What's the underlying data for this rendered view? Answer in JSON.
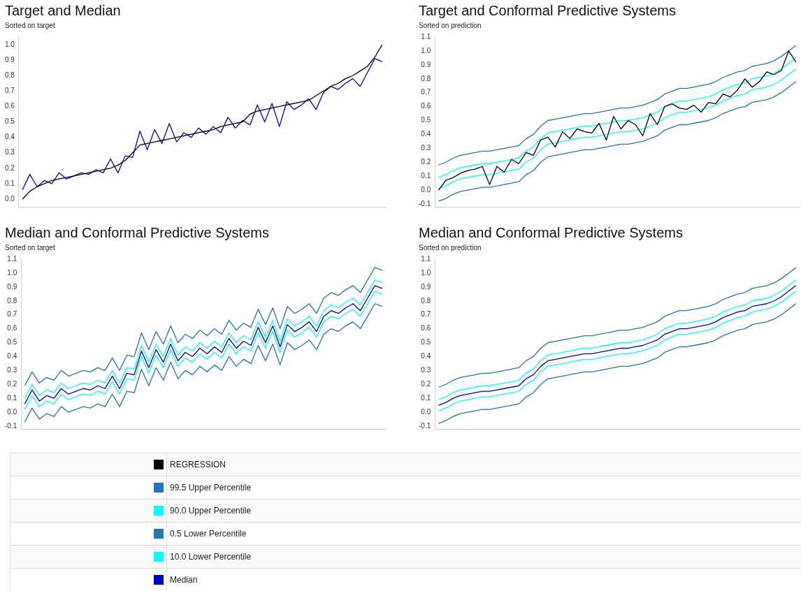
{
  "chart_data": [
    {
      "type": "line",
      "title": "Target and Median",
      "subtitle": "Sorted on target",
      "categories": [
        null,
        null,
        null,
        null,
        null,
        null,
        null,
        null,
        null,
        null,
        null,
        null,
        null,
        null,
        null,
        null,
        null,
        null,
        null,
        null,
        null,
        null,
        null,
        null,
        null,
        null,
        null,
        null,
        null,
        null,
        null,
        null,
        null,
        null,
        null,
        null,
        null,
        null,
        null,
        null,
        null,
        null,
        null,
        null,
        null,
        null,
        null,
        null,
        null,
        null
      ],
      "ylim": [
        -0.05,
        1.05
      ],
      "yticks": [
        {
          "value": 0,
          "label": "0.0"
        },
        {
          "value": 0.1,
          "label": "0.1"
        },
        {
          "value": 0.2,
          "label": "0.2"
        },
        {
          "value": 0.3,
          "label": "0.3"
        },
        {
          "value": 0.4,
          "label": "0.4"
        },
        {
          "value": 0.5,
          "label": "0.5"
        },
        {
          "value": 0.6,
          "label": "0.6"
        },
        {
          "value": 0.7,
          "label": "0.7"
        },
        {
          "value": 0.8,
          "label": "0.8"
        },
        {
          "value": 0.9,
          "label": "0.9"
        },
        {
          "value": 1,
          "label": "1.0"
        }
      ],
      "grid": false,
      "legend": false,
      "tick_labels": "y",
      "marker": "none",
      "line_style": "solid",
      "series": [
        {
          "color": "#000000",
          "values": [
            0.0,
            0.05,
            0.08,
            0.1,
            0.12,
            0.13,
            0.14,
            0.15,
            0.16,
            0.17,
            0.18,
            0.19,
            0.2,
            0.22,
            0.25,
            0.3,
            0.35,
            0.36,
            0.37,
            0.38,
            0.39,
            0.4,
            0.41,
            0.42,
            0.43,
            0.44,
            0.45,
            0.47,
            0.48,
            0.49,
            0.5,
            0.55,
            0.57,
            0.58,
            0.59,
            0.6,
            0.61,
            0.62,
            0.63,
            0.64,
            0.67,
            0.7,
            0.73,
            0.75,
            0.78,
            0.8,
            0.83,
            0.86,
            0.92,
            1.0
          ]
        },
        {
          "color": "#0000cc",
          "values": [
            0.06,
            0.16,
            0.08,
            0.12,
            0.1,
            0.17,
            0.13,
            0.15,
            0.17,
            0.16,
            0.19,
            0.17,
            0.26,
            0.17,
            0.28,
            0.27,
            0.44,
            0.32,
            0.45,
            0.36,
            0.49,
            0.37,
            0.43,
            0.4,
            0.46,
            0.42,
            0.47,
            0.43,
            0.53,
            0.46,
            0.51,
            0.48,
            0.61,
            0.5,
            0.62,
            0.47,
            0.63,
            0.58,
            0.61,
            0.65,
            0.58,
            0.69,
            0.73,
            0.71,
            0.75,
            0.78,
            0.73,
            0.82,
            0.91,
            0.89
          ]
        }
      ]
    },
    {
      "type": "line",
      "title": "Target and Conformal Predictive Systems",
      "subtitle": "Sorted on prediction",
      "categories": [
        null,
        null,
        null,
        null,
        null,
        null,
        null,
        null,
        null,
        null,
        null,
        null,
        null,
        null,
        null,
        null,
        null,
        null,
        null,
        null,
        null,
        null,
        null,
        null,
        null,
        null,
        null,
        null,
        null,
        null,
        null,
        null,
        null,
        null,
        null,
        null,
        null,
        null,
        null,
        null,
        null,
        null,
        null,
        null,
        null,
        null,
        null,
        null,
        null,
        null
      ],
      "ylim": [
        -0.12,
        1.1
      ],
      "yticks": [
        {
          "value": -0.1,
          "label": "-0.1"
        },
        {
          "value": 0,
          "label": "0.0"
        },
        {
          "value": 0.1,
          "label": "0.1"
        },
        {
          "value": 0.2,
          "label": "0.2"
        },
        {
          "value": 0.3,
          "label": "0.3"
        },
        {
          "value": 0.4,
          "label": "0.4"
        },
        {
          "value": 0.5,
          "label": "0.5"
        },
        {
          "value": 0.6,
          "label": "0.6"
        },
        {
          "value": 0.7,
          "label": "0.7"
        },
        {
          "value": 0.8,
          "label": "0.8"
        },
        {
          "value": 0.9,
          "label": "0.9"
        },
        {
          "value": 1,
          "label": "1.0"
        },
        {
          "value": 1.1,
          "label": "1.1"
        }
      ],
      "grid": false,
      "legend": "bottom",
      "tick_labels": "y",
      "marker": "none",
      "line_style": "solid",
      "series": [
        {
          "name": "REGRESSION",
          "color": "#000000",
          "values": [
            0.0,
            0.07,
            0.09,
            0.12,
            0.14,
            0.15,
            0.17,
            0.04,
            0.17,
            0.13,
            0.22,
            0.19,
            0.27,
            0.25,
            0.36,
            0.38,
            0.31,
            0.42,
            0.37,
            0.44,
            0.42,
            0.41,
            0.48,
            0.36,
            0.53,
            0.44,
            0.5,
            0.47,
            0.39,
            0.55,
            0.47,
            0.6,
            0.62,
            0.59,
            0.58,
            0.61,
            0.56,
            0.63,
            0.62,
            0.69,
            0.67,
            0.72,
            0.8,
            0.74,
            0.78,
            0.85,
            0.83,
            0.86,
            1.0,
            0.92
          ]
        },
        {
          "name": "99.5 Upper Percentile",
          "color": "#1f77b4",
          "values": [
            0.18,
            0.2,
            0.23,
            0.25,
            0.26,
            0.27,
            0.28,
            0.28,
            0.29,
            0.3,
            0.31,
            0.32,
            0.37,
            0.4,
            0.46,
            0.5,
            0.51,
            0.52,
            0.53,
            0.54,
            0.55,
            0.55,
            0.56,
            0.57,
            0.58,
            0.59,
            0.59,
            0.6,
            0.61,
            0.63,
            0.65,
            0.69,
            0.71,
            0.73,
            0.73,
            0.74,
            0.75,
            0.76,
            0.78,
            0.81,
            0.83,
            0.85,
            0.86,
            0.89,
            0.9,
            0.91,
            0.93,
            0.96,
            1.0,
            1.04
          ]
        },
        {
          "name": "90.0 Upper Percentile",
          "color": "#00ffff",
          "values": [
            0.09,
            0.11,
            0.14,
            0.16,
            0.17,
            0.18,
            0.19,
            0.19,
            0.2,
            0.21,
            0.22,
            0.23,
            0.28,
            0.31,
            0.37,
            0.41,
            0.42,
            0.43,
            0.44,
            0.45,
            0.46,
            0.46,
            0.47,
            0.48,
            0.49,
            0.5,
            0.5,
            0.51,
            0.52,
            0.54,
            0.56,
            0.6,
            0.62,
            0.64,
            0.64,
            0.65,
            0.66,
            0.67,
            0.69,
            0.72,
            0.74,
            0.76,
            0.77,
            0.8,
            0.81,
            0.82,
            0.84,
            0.87,
            0.91,
            0.95
          ]
        },
        {
          "name": "0.5 Lower Percentile",
          "color": "#1f77b4",
          "values": [
            -0.08,
            -0.06,
            -0.03,
            -0.01,
            0.0,
            0.01,
            0.02,
            0.02,
            0.03,
            0.04,
            0.05,
            0.06,
            0.11,
            0.14,
            0.2,
            0.24,
            0.25,
            0.26,
            0.27,
            0.28,
            0.29,
            0.29,
            0.3,
            0.31,
            0.32,
            0.33,
            0.33,
            0.34,
            0.35,
            0.37,
            0.39,
            0.43,
            0.45,
            0.47,
            0.47,
            0.48,
            0.49,
            0.5,
            0.52,
            0.55,
            0.57,
            0.59,
            0.6,
            0.63,
            0.64,
            0.65,
            0.67,
            0.7,
            0.74,
            0.78
          ]
        },
        {
          "name": "10.0 Lower Percentile",
          "color": "#00ffff",
          "values": [
            0.01,
            0.03,
            0.06,
            0.08,
            0.09,
            0.1,
            0.11,
            0.11,
            0.12,
            0.13,
            0.14,
            0.15,
            0.2,
            0.23,
            0.29,
            0.33,
            0.34,
            0.35,
            0.36,
            0.37,
            0.38,
            0.38,
            0.39,
            0.4,
            0.41,
            0.42,
            0.42,
            0.43,
            0.44,
            0.46,
            0.48,
            0.52,
            0.54,
            0.56,
            0.56,
            0.57,
            0.58,
            0.59,
            0.61,
            0.64,
            0.66,
            0.68,
            0.69,
            0.72,
            0.73,
            0.74,
            0.76,
            0.79,
            0.83,
            0.87
          ]
        }
      ]
    },
    {
      "type": "line",
      "title": "Median and Conformal Predictive Systems",
      "subtitle": "Sorted on target",
      "categories": [
        null,
        null,
        null,
        null,
        null,
        null,
        null,
        null,
        null,
        null,
        null,
        null,
        null,
        null,
        null,
        null,
        null,
        null,
        null,
        null,
        null,
        null,
        null,
        null,
        null,
        null,
        null,
        null,
        null,
        null,
        null,
        null,
        null,
        null,
        null,
        null,
        null,
        null,
        null,
        null,
        null,
        null,
        null,
        null,
        null,
        null,
        null,
        null,
        null,
        null
      ],
      "ylim": [
        -0.12,
        1.1
      ],
      "yticks": [
        {
          "value": -0.1,
          "label": "-0.1"
        },
        {
          "value": 0,
          "label": "0.0"
        },
        {
          "value": 0.1,
          "label": "0.1"
        },
        {
          "value": 0.2,
          "label": "0.2"
        },
        {
          "value": 0.3,
          "label": "0.3"
        },
        {
          "value": 0.4,
          "label": "0.4"
        },
        {
          "value": 0.5,
          "label": "0.5"
        },
        {
          "value": 0.6,
          "label": "0.6"
        },
        {
          "value": 0.7,
          "label": "0.7"
        },
        {
          "value": 0.8,
          "label": "0.8"
        },
        {
          "value": 0.9,
          "label": "0.9"
        },
        {
          "value": 1,
          "label": "1.0"
        },
        {
          "value": 1.1,
          "label": "1.1"
        }
      ],
      "grid": false,
      "legend": "bottom",
      "tick_labels": "y",
      "marker": "none",
      "line_style": "solid",
      "series": [
        {
          "color": "#1f77b4",
          "values": [
            0.19,
            0.29,
            0.21,
            0.25,
            0.23,
            0.3,
            0.26,
            0.28,
            0.3,
            0.29,
            0.32,
            0.3,
            0.39,
            0.3,
            0.41,
            0.4,
            0.57,
            0.45,
            0.58,
            0.49,
            0.62,
            0.5,
            0.56,
            0.53,
            0.59,
            0.55,
            0.6,
            0.56,
            0.66,
            0.59,
            0.64,
            0.61,
            0.74,
            0.63,
            0.75,
            0.6,
            0.76,
            0.71,
            0.74,
            0.78,
            0.71,
            0.82,
            0.86,
            0.84,
            0.88,
            0.91,
            0.86,
            0.95,
            1.04,
            1.02
          ]
        },
        {
          "color": "#00ffff",
          "values": [
            0.1,
            0.2,
            0.12,
            0.16,
            0.14,
            0.21,
            0.17,
            0.19,
            0.21,
            0.2,
            0.23,
            0.21,
            0.3,
            0.21,
            0.32,
            0.31,
            0.48,
            0.36,
            0.49,
            0.4,
            0.53,
            0.41,
            0.47,
            0.44,
            0.5,
            0.46,
            0.51,
            0.47,
            0.57,
            0.5,
            0.55,
            0.52,
            0.65,
            0.54,
            0.66,
            0.51,
            0.67,
            0.62,
            0.65,
            0.69,
            0.62,
            0.73,
            0.77,
            0.75,
            0.79,
            0.82,
            0.77,
            0.86,
            0.95,
            0.93
          ]
        },
        {
          "color": "#1f77b4",
          "values": [
            -0.07,
            0.03,
            -0.05,
            -0.01,
            -0.03,
            0.04,
            0.0,
            0.02,
            0.04,
            0.03,
            0.06,
            0.04,
            0.13,
            0.04,
            0.15,
            0.14,
            0.31,
            0.19,
            0.32,
            0.23,
            0.36,
            0.24,
            0.3,
            0.27,
            0.33,
            0.29,
            0.34,
            0.3,
            0.4,
            0.33,
            0.38,
            0.35,
            0.48,
            0.37,
            0.49,
            0.34,
            0.5,
            0.45,
            0.48,
            0.52,
            0.45,
            0.56,
            0.6,
            0.58,
            0.62,
            0.65,
            0.6,
            0.69,
            0.78,
            0.76
          ]
        },
        {
          "color": "#00ffff",
          "values": [
            0.02,
            0.12,
            0.04,
            0.08,
            0.06,
            0.13,
            0.09,
            0.11,
            0.13,
            0.12,
            0.15,
            0.13,
            0.22,
            0.13,
            0.24,
            0.23,
            0.4,
            0.28,
            0.41,
            0.32,
            0.45,
            0.33,
            0.39,
            0.36,
            0.42,
            0.38,
            0.43,
            0.39,
            0.49,
            0.42,
            0.47,
            0.44,
            0.57,
            0.46,
            0.58,
            0.43,
            0.59,
            0.54,
            0.57,
            0.61,
            0.54,
            0.65,
            0.69,
            0.67,
            0.71,
            0.74,
            0.69,
            0.78,
            0.87,
            0.85
          ]
        },
        {
          "name": "Median",
          "color": "#0000cc",
          "values": [
            0.06,
            0.16,
            0.08,
            0.12,
            0.1,
            0.17,
            0.13,
            0.15,
            0.17,
            0.16,
            0.19,
            0.17,
            0.26,
            0.17,
            0.28,
            0.27,
            0.44,
            0.32,
            0.45,
            0.36,
            0.49,
            0.37,
            0.43,
            0.4,
            0.46,
            0.42,
            0.47,
            0.43,
            0.53,
            0.46,
            0.51,
            0.48,
            0.61,
            0.5,
            0.62,
            0.47,
            0.63,
            0.58,
            0.61,
            0.65,
            0.58,
            0.69,
            0.73,
            0.71,
            0.75,
            0.78,
            0.73,
            0.82,
            0.91,
            0.89
          ]
        }
      ]
    },
    {
      "type": "line",
      "title": "Median and Conformal Predictive Systems",
      "subtitle": "Sorted on prediction",
      "categories": [
        null,
        null,
        null,
        null,
        null,
        null,
        null,
        null,
        null,
        null,
        null,
        null,
        null,
        null,
        null,
        null,
        null,
        null,
        null,
        null,
        null,
        null,
        null,
        null,
        null,
        null,
        null,
        null,
        null,
        null,
        null,
        null,
        null,
        null,
        null,
        null,
        null,
        null,
        null,
        null,
        null,
        null,
        null,
        null,
        null,
        null,
        null,
        null,
        null,
        null
      ],
      "ylim": [
        -0.12,
        1.1
      ],
      "yticks": [
        {
          "value": -0.1,
          "label": "-0.1"
        },
        {
          "value": 0,
          "label": "0.0"
        },
        {
          "value": 0.1,
          "label": "0.1"
        },
        {
          "value": 0.2,
          "label": "0.2"
        },
        {
          "value": 0.3,
          "label": "0.3"
        },
        {
          "value": 0.4,
          "label": "0.4"
        },
        {
          "value": 0.5,
          "label": "0.5"
        },
        {
          "value": 0.6,
          "label": "0.6"
        },
        {
          "value": 0.7,
          "label": "0.7"
        },
        {
          "value": 0.8,
          "label": "0.8"
        },
        {
          "value": 0.9,
          "label": "0.9"
        },
        {
          "value": 1,
          "label": "1.0"
        },
        {
          "value": 1.1,
          "label": "1.1"
        }
      ],
      "grid": false,
      "legend": false,
      "tick_labels": "y",
      "marker": "none",
      "line_style": "solid",
      "series": [
        {
          "color": "#1f77b4",
          "values": [
            0.18,
            0.2,
            0.23,
            0.25,
            0.26,
            0.27,
            0.28,
            0.28,
            0.29,
            0.3,
            0.31,
            0.32,
            0.37,
            0.4,
            0.46,
            0.5,
            0.51,
            0.52,
            0.53,
            0.54,
            0.55,
            0.55,
            0.56,
            0.57,
            0.58,
            0.59,
            0.59,
            0.6,
            0.61,
            0.63,
            0.65,
            0.69,
            0.71,
            0.73,
            0.73,
            0.74,
            0.75,
            0.76,
            0.78,
            0.81,
            0.83,
            0.85,
            0.86,
            0.89,
            0.9,
            0.91,
            0.93,
            0.96,
            1.0,
            1.04
          ]
        },
        {
          "color": "#00ffff",
          "values": [
            0.09,
            0.11,
            0.14,
            0.16,
            0.17,
            0.18,
            0.19,
            0.19,
            0.2,
            0.21,
            0.22,
            0.23,
            0.28,
            0.31,
            0.37,
            0.41,
            0.42,
            0.43,
            0.44,
            0.45,
            0.46,
            0.46,
            0.47,
            0.48,
            0.49,
            0.5,
            0.5,
            0.51,
            0.52,
            0.54,
            0.56,
            0.6,
            0.62,
            0.64,
            0.64,
            0.65,
            0.66,
            0.67,
            0.69,
            0.72,
            0.74,
            0.76,
            0.77,
            0.8,
            0.81,
            0.82,
            0.84,
            0.87,
            0.91,
            0.95
          ]
        },
        {
          "color": "#1f77b4",
          "values": [
            -0.08,
            -0.06,
            -0.03,
            -0.01,
            0.0,
            0.01,
            0.02,
            0.02,
            0.03,
            0.04,
            0.05,
            0.06,
            0.11,
            0.14,
            0.2,
            0.24,
            0.25,
            0.26,
            0.27,
            0.28,
            0.29,
            0.29,
            0.3,
            0.31,
            0.32,
            0.33,
            0.33,
            0.34,
            0.35,
            0.37,
            0.39,
            0.43,
            0.45,
            0.47,
            0.47,
            0.48,
            0.49,
            0.5,
            0.52,
            0.55,
            0.57,
            0.59,
            0.6,
            0.63,
            0.64,
            0.65,
            0.67,
            0.7,
            0.74,
            0.78
          ]
        },
        {
          "color": "#00ffff",
          "values": [
            0.01,
            0.03,
            0.06,
            0.08,
            0.09,
            0.1,
            0.11,
            0.11,
            0.12,
            0.13,
            0.14,
            0.15,
            0.2,
            0.23,
            0.29,
            0.33,
            0.34,
            0.35,
            0.36,
            0.37,
            0.38,
            0.38,
            0.39,
            0.4,
            0.41,
            0.42,
            0.42,
            0.43,
            0.44,
            0.46,
            0.48,
            0.52,
            0.54,
            0.56,
            0.56,
            0.57,
            0.58,
            0.59,
            0.61,
            0.64,
            0.66,
            0.68,
            0.69,
            0.72,
            0.73,
            0.74,
            0.76,
            0.79,
            0.83,
            0.87
          ]
        },
        {
          "color": "#0000cc",
          "values": [
            0.05,
            0.07,
            0.1,
            0.12,
            0.13,
            0.14,
            0.15,
            0.15,
            0.16,
            0.17,
            0.18,
            0.19,
            0.24,
            0.27,
            0.33,
            0.37,
            0.38,
            0.39,
            0.4,
            0.41,
            0.42,
            0.42,
            0.43,
            0.44,
            0.45,
            0.46,
            0.46,
            0.47,
            0.48,
            0.5,
            0.52,
            0.56,
            0.58,
            0.6,
            0.6,
            0.61,
            0.62,
            0.63,
            0.65,
            0.68,
            0.7,
            0.72,
            0.73,
            0.76,
            0.77,
            0.78,
            0.8,
            0.83,
            0.87,
            0.91
          ]
        }
      ]
    }
  ]
}
